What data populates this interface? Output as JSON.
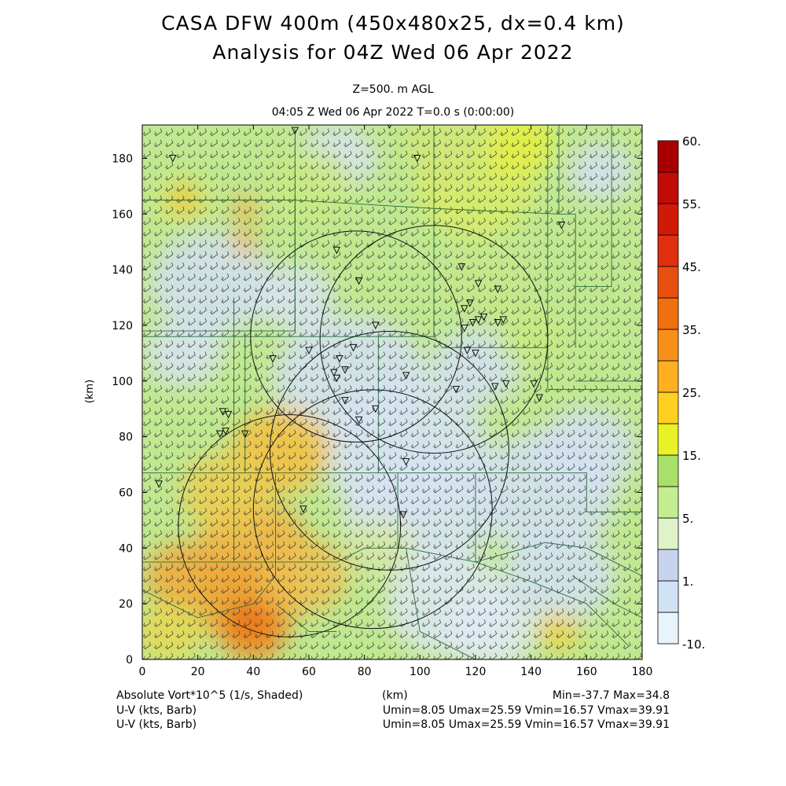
{
  "header": {
    "title": "CASA DFW 400m (450x480x25, dx=0.4 km)",
    "subtitle": "Analysis for 04Z Wed 06 Apr 2022",
    "level": "Z=500. m AGL",
    "time": "04:05 Z Wed 06 Apr 2022   T=0.0 s (0:00:00)"
  },
  "footer": {
    "field1": "Absolute Vort*10^5 (1/s, Shaded)",
    "field2": "U-V (kts, Barb)",
    "field3": "U-V (kts, Barb)",
    "xunit": "(km)",
    "minmax": "Min=-37.7 Max=34.8",
    "uv1": "Umin=8.05 Umax=25.59 Vmin=16.57 Vmax=39.91",
    "uv2": "Umin=8.05 Umax=25.59 Vmin=16.57 Vmax=39.91"
  },
  "chart_data": {
    "type": "heatmap",
    "xlabel": "(km)",
    "ylabel": "(km)",
    "xlim": [
      0,
      180
    ],
    "ylim": [
      0,
      192
    ],
    "x_ticks": [
      "0",
      "20",
      "40",
      "60",
      "80",
      "100",
      "120",
      "140",
      "160",
      "180"
    ],
    "y_ticks": [
      "0",
      "20",
      "40",
      "60",
      "80",
      "100",
      "120",
      "140",
      "160",
      "180"
    ],
    "colorbar": {
      "labels": [
        "60.",
        "55.",
        "45.",
        "35.",
        "25.",
        "15.",
        "5.",
        "1.",
        "-10."
      ],
      "colors": [
        "#e8f4fb",
        "#cfe3f4",
        "#c8d4ee",
        "#e0f2c8",
        "#c4ec90",
        "#a8e06a",
        "#e8f226",
        "#ffd020",
        "#ffb020",
        "#f89018",
        "#f07010",
        "#e85010",
        "#e03010",
        "#d01a08",
        "#c00c04",
        "#a80000"
      ]
    },
    "radar_circles": [
      {
        "cx": 77,
        "cy": 116,
        "r": 38
      },
      {
        "cx": 105,
        "cy": 115,
        "r": 41
      },
      {
        "cx": 89,
        "cy": 75,
        "r": 43
      },
      {
        "cx": 53,
        "cy": 48,
        "r": 40
      },
      {
        "cx": 83,
        "cy": 54,
        "r": 43
      }
    ],
    "stations": [
      [
        55,
        190
      ],
      [
        89,
        192
      ],
      [
        11,
        180
      ],
      [
        99,
        180
      ],
      [
        151,
        156
      ],
      [
        70,
        147
      ],
      [
        78,
        136
      ],
      [
        115,
        141
      ],
      [
        121,
        135
      ],
      [
        128,
        133
      ],
      [
        118,
        128
      ],
      [
        116,
        126
      ],
      [
        123,
        123
      ],
      [
        119,
        121
      ],
      [
        116,
        119
      ],
      [
        121,
        122
      ],
      [
        128,
        121
      ],
      [
        130,
        122
      ],
      [
        84,
        120
      ],
      [
        76,
        112
      ],
      [
        71,
        108
      ],
      [
        69,
        103
      ],
      [
        73,
        104
      ],
      [
        70,
        101
      ],
      [
        60,
        111
      ],
      [
        47,
        108
      ],
      [
        117,
        111
      ],
      [
        120,
        110
      ],
      [
        127,
        98
      ],
      [
        131,
        99
      ],
      [
        141,
        99
      ],
      [
        143,
        94
      ],
      [
        95,
        102
      ],
      [
        113,
        97
      ],
      [
        29,
        89
      ],
      [
        31,
        88
      ],
      [
        30,
        82
      ],
      [
        28,
        81
      ],
      [
        37,
        81
      ],
      [
        73,
        93
      ],
      [
        84,
        90
      ],
      [
        78,
        86
      ],
      [
        95,
        71
      ],
      [
        6,
        63
      ],
      [
        58,
        54
      ],
      [
        94,
        52
      ]
    ]
  }
}
